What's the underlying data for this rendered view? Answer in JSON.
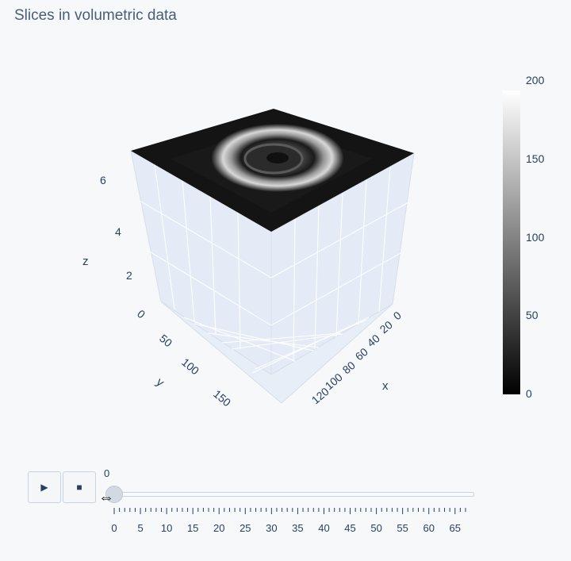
{
  "title": "Slices in volumetric data",
  "chart_data": {
    "type": "heatmap",
    "subtype": "3d-surface-slice",
    "title": "Slices in volumetric data",
    "colorscale": "gray",
    "colorbar": {
      "range": [
        0,
        200
      ],
      "ticks": [
        "0",
        "50",
        "100",
        "150",
        "200"
      ]
    },
    "axes": {
      "x": {
        "title": "x",
        "ticks": [
          "0",
          "20",
          "40",
          "60",
          "80",
          "100",
          "120"
        ],
        "range": [
          0,
          130
        ]
      },
      "y": {
        "title": "y",
        "ticks": [
          "0",
          "50",
          "100",
          "150"
        ],
        "range": [
          0,
          170
        ]
      },
      "z": {
        "title": "z",
        "ticks": [
          "2",
          "4",
          "6"
        ],
        "range": [
          0,
          6.7
        ]
      }
    },
    "slice_z": 6.7,
    "current_frame": 0
  },
  "controls": {
    "play_icon": "play-icon",
    "stop_icon": "stop-icon",
    "current_value": "0",
    "slider_value": 0,
    "slider_ticks": [
      "0",
      "5",
      "10",
      "15",
      "20",
      "25",
      "30",
      "35",
      "40",
      "45",
      "50",
      "55",
      "60",
      "65"
    ],
    "slider_max": 67
  }
}
